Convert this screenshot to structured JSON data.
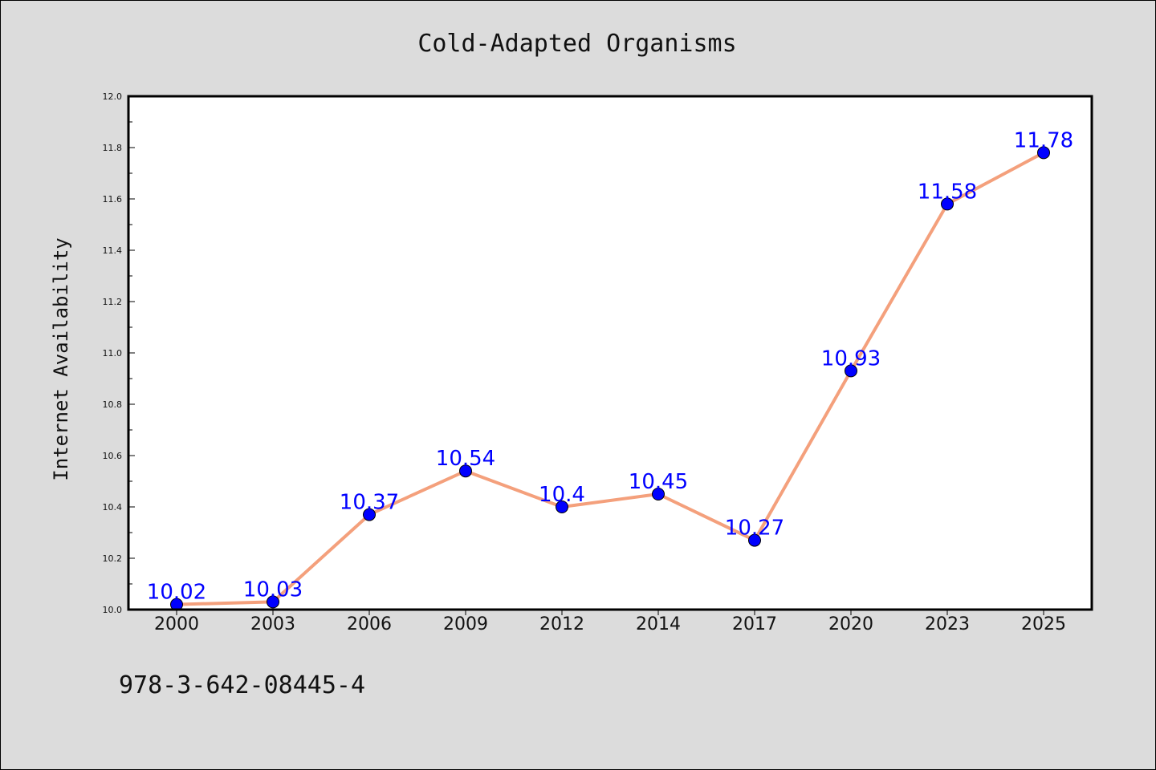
{
  "chart_data": {
    "type": "line",
    "title": "Cold-Adapted Organisms",
    "xlabel": "",
    "ylabel": "Internet Availability",
    "categories": [
      "2000",
      "2003",
      "2006",
      "2009",
      "2012",
      "2014",
      "2017",
      "2020",
      "2023",
      "2025"
    ],
    "series": [
      {
        "values": [
          10.02,
          10.03,
          10.37,
          10.54,
          10.4,
          10.45,
          10.27,
          10.93,
          11.58,
          11.78
        ],
        "data_labels": [
          "10.02",
          "10.03",
          "10.37",
          "10.54",
          "10.4",
          "10.45",
          "10.27",
          "10.93",
          "11.58",
          "11.78"
        ],
        "line_color": "#f4a07c",
        "marker_color": "#0000ff"
      }
    ],
    "ylim": [
      10.0,
      12.0
    ],
    "yticks": [
      "10.0",
      "10.2",
      "10.4",
      "10.6",
      "10.8",
      "11.0",
      "11.2",
      "11.4",
      "11.6",
      "11.8",
      "12.0"
    ],
    "grid": false,
    "legend": "none"
  },
  "footer": {
    "isbn": "978-3-642-08445-4"
  }
}
